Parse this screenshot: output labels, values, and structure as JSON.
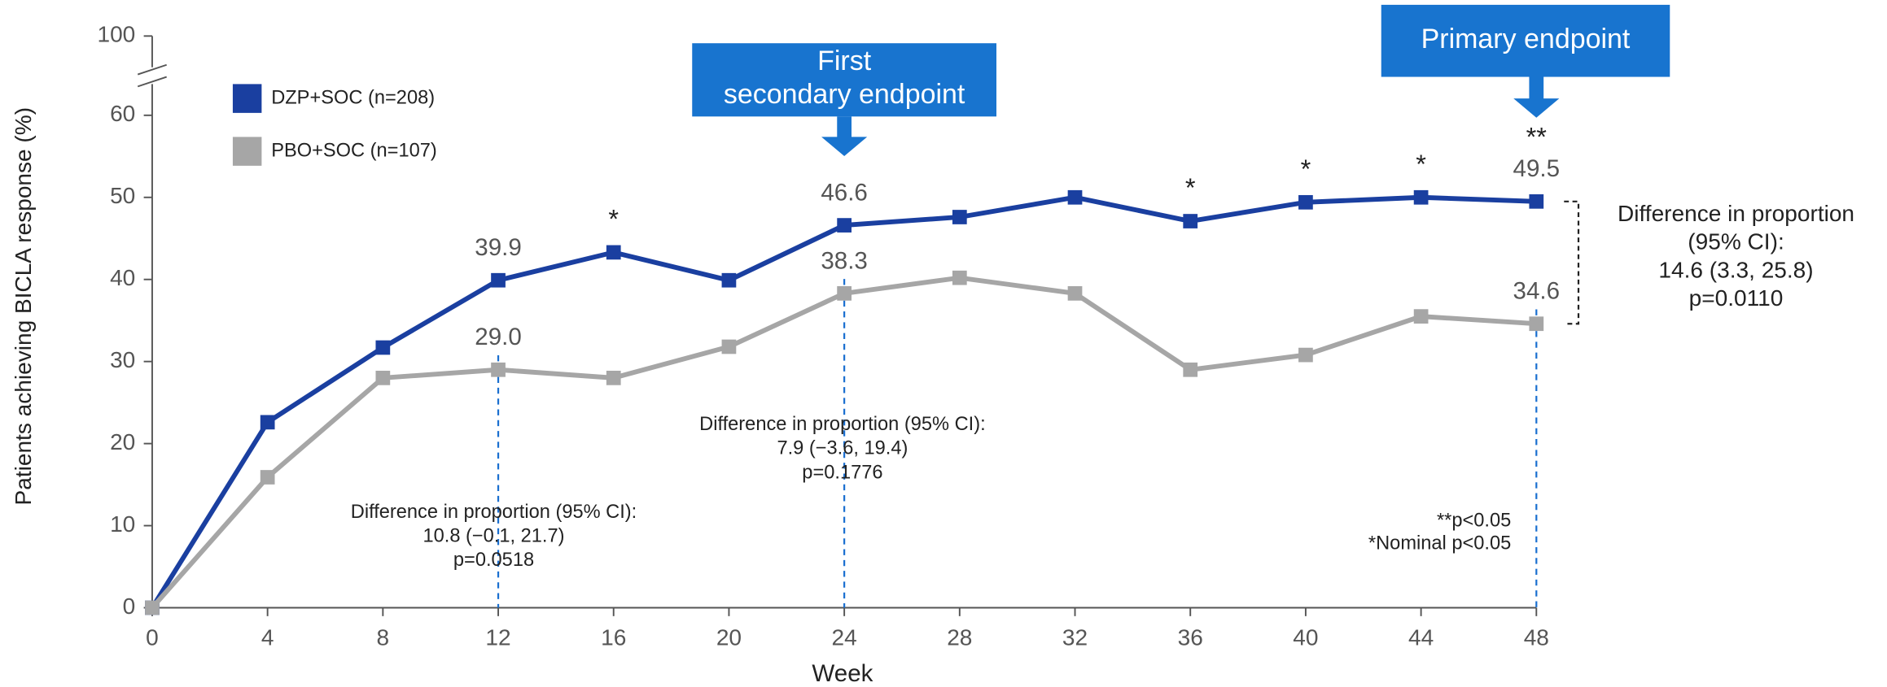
{
  "chart_data": {
    "type": "line",
    "y_label": "Patients achieving BICLA response (%)",
    "x_label": "Week",
    "x": [
      0,
      4,
      8,
      12,
      16,
      20,
      24,
      28,
      32,
      36,
      40,
      44,
      48
    ],
    "xlim": [
      0,
      48
    ],
    "xticks": [
      0,
      4,
      8,
      12,
      16,
      20,
      24,
      28,
      32,
      36,
      40,
      44,
      48
    ],
    "ylim": [
      0,
      100
    ],
    "yticks": [
      0,
      10,
      20,
      30,
      40,
      50,
      60,
      100
    ],
    "series": [
      {
        "name": "DZP+SOC (n=208)",
        "color": "#1a3fa0",
        "values": [
          0,
          22.6,
          31.7,
          39.9,
          43.3,
          39.9,
          46.6,
          47.6,
          50.0,
          47.1,
          49.4,
          50.0,
          49.5
        ],
        "value_labels": [
          null,
          null,
          null,
          "39.9",
          null,
          null,
          "46.6",
          null,
          null,
          null,
          null,
          null,
          "49.5"
        ]
      },
      {
        "name": "PBO+SOC (n=107)",
        "color": "#a6a6a6",
        "values": [
          0,
          15.9,
          28.0,
          29.0,
          28.0,
          31.8,
          38.3,
          40.2,
          38.3,
          29.0,
          30.8,
          35.5,
          34.6
        ],
        "value_labels": [
          null,
          null,
          null,
          "29.0",
          null,
          null,
          "38.3",
          null,
          null,
          null,
          null,
          null,
          "34.6"
        ]
      }
    ],
    "significance": [
      null,
      null,
      null,
      null,
      "*",
      null,
      null,
      null,
      null,
      "*",
      "*",
      "*",
      "**"
    ],
    "callouts": [
      {
        "lines": [
          "First",
          "secondary endpoint"
        ]
      },
      {
        "lines": [
          "Primary endpoint"
        ]
      }
    ],
    "differences": [
      {
        "lines": [
          "Difference in proportion (95% CI):",
          "10.8 (−0.1, 21.7)",
          "p=0.0518"
        ]
      },
      {
        "lines": [
          "Difference in proportion (95% CI):",
          "7.9 (−3.6, 19.4)",
          "p=0.1776"
        ]
      },
      {
        "lines": [
          "Difference in proportion",
          "(95% CI):",
          "14.6 (3.3, 25.8)",
          "p=0.0110"
        ]
      }
    ],
    "footnotes": [
      "**p<0.05",
      "*Nominal p<0.05"
    ]
  }
}
